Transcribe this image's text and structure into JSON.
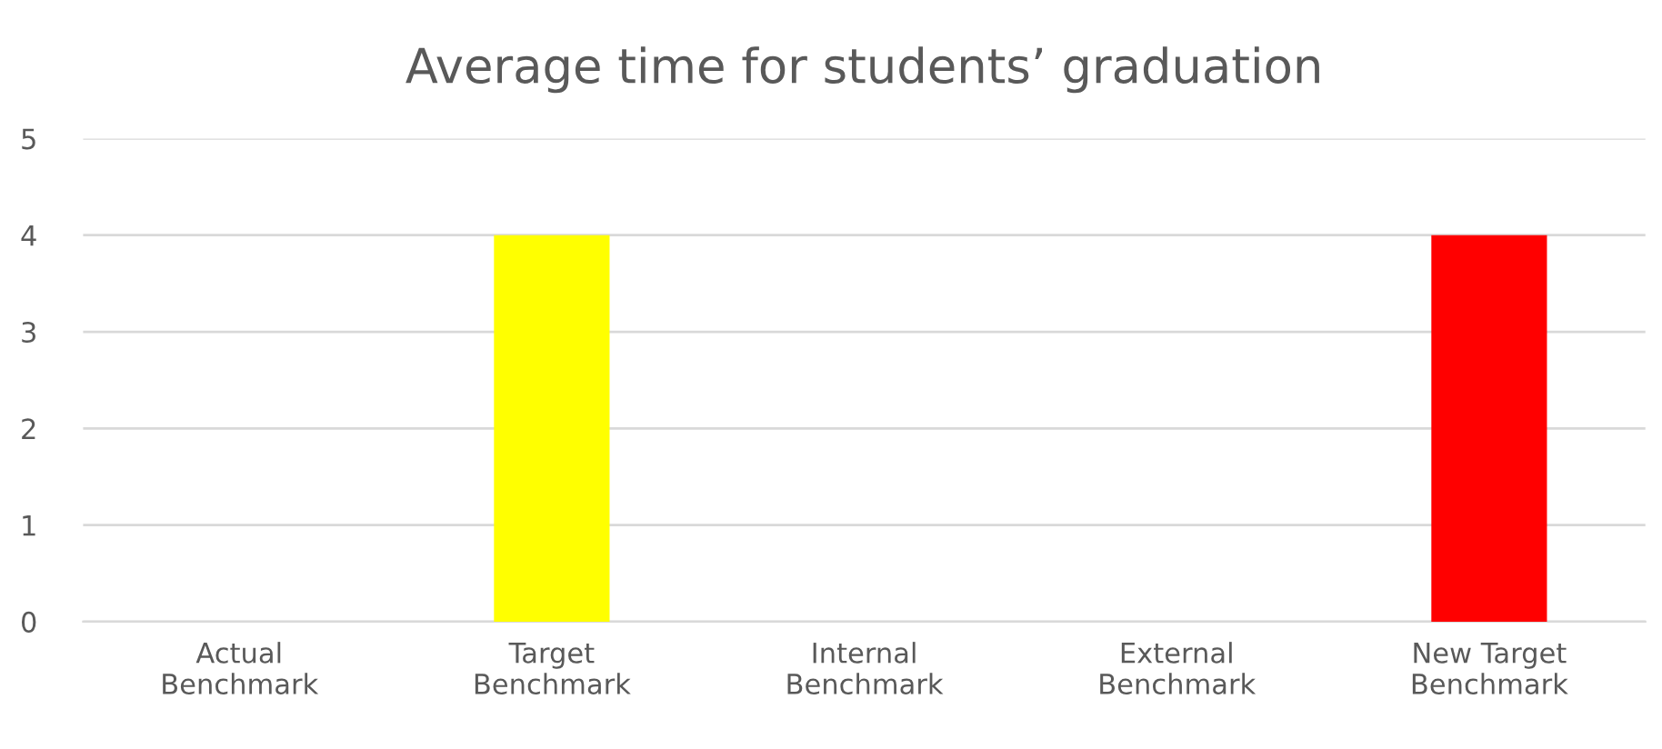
{
  "chart_data": {
    "type": "bar",
    "title": "Average time for students’ graduation",
    "categories": [
      "Actual\nBenchmark",
      "Target\nBenchmark",
      "Internal\nBenchmark",
      "External\nBenchmark",
      "New Target\nBenchmark"
    ],
    "values": [
      null,
      4,
      null,
      null,
      4
    ],
    "colors": [
      null,
      "#ffff00",
      null,
      null,
      "#ff0000"
    ],
    "ylim": [
      0,
      5
    ],
    "yticks": [
      0,
      1,
      2,
      3,
      4,
      5
    ],
    "grid": "y"
  }
}
